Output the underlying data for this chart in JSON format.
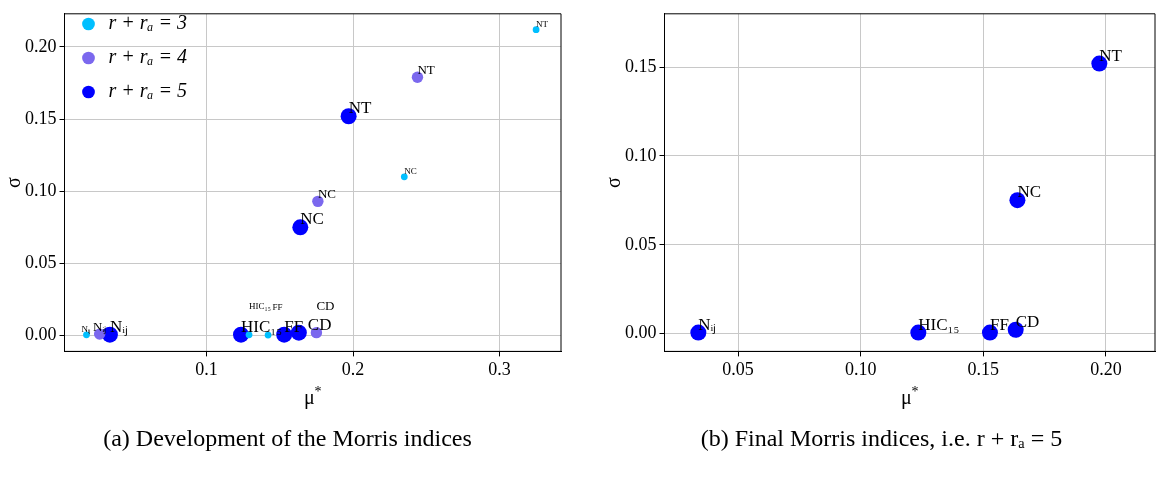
{
  "chart_data": [
    {
      "type": "scatter",
      "xlabel": "μ$^{*}$",
      "ylabel": "σ",
      "xlim": [
        0.003,
        0.342
      ],
      "ylim": [
        -0.011,
        0.223
      ],
      "xticks": [
        {
          "value": 0.1,
          "label": "0.1"
        },
        {
          "value": 0.2,
          "label": "0.2"
        },
        {
          "value": 0.3,
          "label": "0.3"
        }
      ],
      "yticks": [
        {
          "value": 0,
          "label": "0.00"
        },
        {
          "value": 0.05,
          "label": "0.05"
        },
        {
          "value": 0.1,
          "label": "0.10"
        },
        {
          "value": 0.15,
          "label": "0.15"
        },
        {
          "value": 0.2,
          "label": "0.20"
        }
      ],
      "grid": true,
      "legend": "top left",
      "marker": "circle",
      "series": [
        {
          "name": "r + rₐ = 3",
          "color": "#00bfff",
          "x": [
            0.018,
            0.129,
            0.142,
            0.235,
            0.325
          ],
          "values": [
            0.0005,
            0.0005,
            0.0003,
            0.11,
            0.212
          ],
          "value_labels": [
            "Nᵢⱼ",
            "HIC₁₅",
            "FF",
            "NC",
            "NT"
          ]
        },
        {
          "name": "r + rₐ = 4",
          "color": "#7b68ee",
          "x": [
            0.027,
            0.175,
            0.176,
            0.244
          ],
          "values": [
            0.001,
            0.002,
            0.093,
            0.179
          ],
          "value_labels": [
            "Nᵢⱼ",
            "CD",
            "NC",
            "NT"
          ]
        },
        {
          "name": "r + rₐ = 5",
          "color": "#0000ff",
          "x": [
            0.034,
            0.1235,
            0.153,
            0.163,
            0.164,
            0.197
          ],
          "values": [
            0.0006,
            0.0006,
            0.0006,
            0.002,
            0.075,
            0.152
          ],
          "value_labels": [
            "Nᵢⱼ",
            "HIC₁₅",
            "FF",
            "CD",
            "NC",
            "NT"
          ]
        }
      ],
      "annotations": [
        "(a) Development of the Morris indices"
      ]
    },
    {
      "type": "scatter",
      "xlabel": "μ$^{*}$",
      "ylabel": "σ",
      "xlim": [
        0.02,
        0.22
      ],
      "ylim": [
        -0.01,
        0.18
      ],
      "xticks": [
        {
          "value": 0.05,
          "label": "0.05"
        },
        {
          "value": 0.1,
          "label": "0.10"
        },
        {
          "value": 0.15,
          "label": "0.15"
        },
        {
          "value": 0.2,
          "label": "0.20"
        }
      ],
      "yticks": [
        {
          "value": 0,
          "label": "0.00"
        },
        {
          "value": 0.05,
          "label": "0.05"
        },
        {
          "value": 0.1,
          "label": "0.10"
        },
        {
          "value": 0.15,
          "label": "0.15"
        }
      ],
      "grid": true,
      "marker": "circle",
      "series": [
        {
          "color": "#0000ff",
          "x": [
            0.0338,
            0.1235,
            0.1527,
            0.1632,
            0.1639,
            0.1973
          ],
          "values": [
            0.0006,
            0.0006,
            0.0006,
            0.0022,
            0.0751,
            0.152
          ],
          "value_labels": [
            "Nᵢⱼ",
            "HIC₁₅",
            "FF",
            "CD",
            "NC",
            "NT"
          ]
        }
      ],
      "annotations": [
        "(b) Final Morris indices, i.e. r + rₐ = 5"
      ]
    }
  ]
}
